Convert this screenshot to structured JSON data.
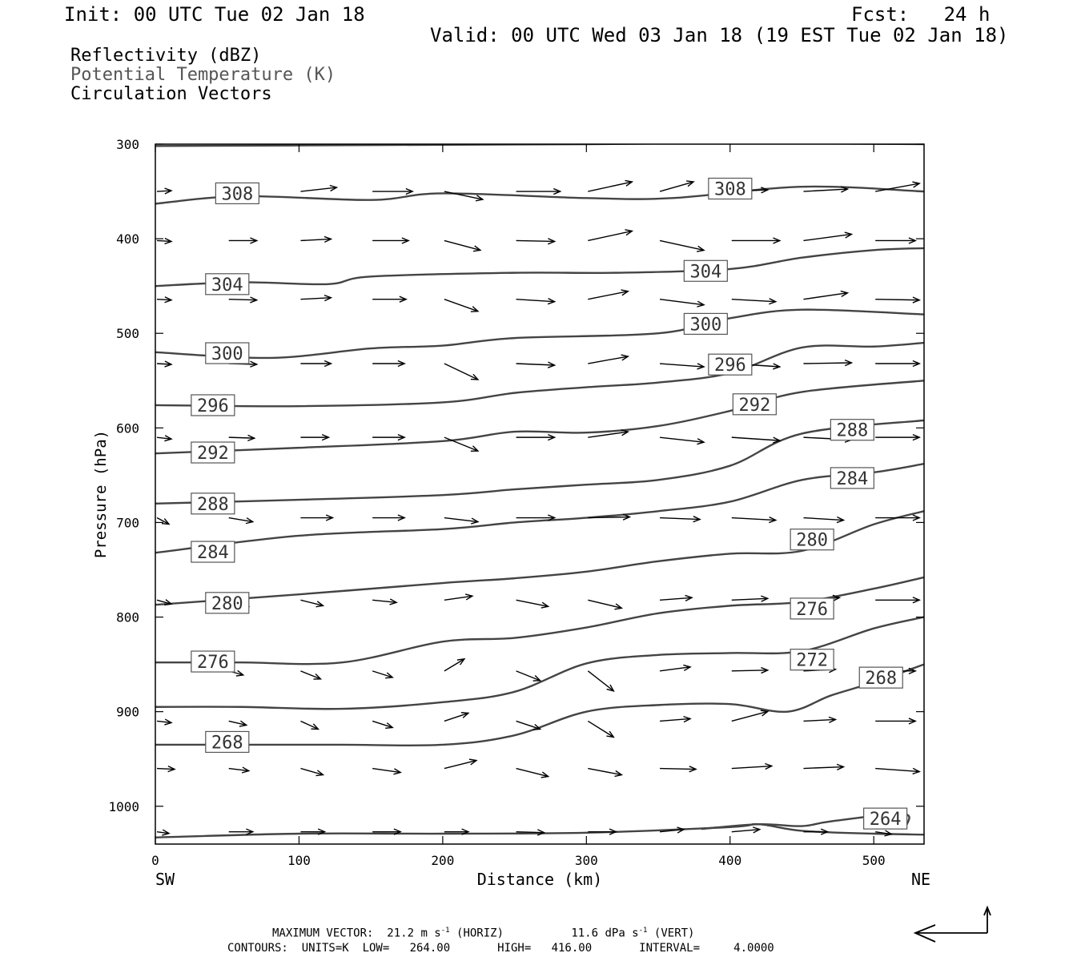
{
  "header": {
    "init": "Init: 00 UTC Tue 02 Jan 18",
    "fcst": "Fcst:   24 h",
    "valid": "Valid: 00 UTC Wed 03 Jan 18 (19 EST Tue 02 Jan 18)"
  },
  "fields": {
    "reflectivity": "Reflectivity (dBZ)",
    "theta": "Potential Temperature (K)",
    "vectors": "Circulation Vectors"
  },
  "chart_data": {
    "type": "line",
    "xlabel": "Distance (km)",
    "ylabel": "Pressure (hPa)",
    "xlim": [
      0,
      535
    ],
    "ylim": [
      1040,
      300
    ],
    "x_ticks": [
      0,
      100,
      200,
      300,
      400,
      500
    ],
    "y_ticks": [
      300,
      400,
      500,
      600,
      700,
      800,
      900,
      1000
    ],
    "x_endpoints": {
      "left": "SW",
      "right": "NE"
    },
    "grid": false,
    "colors": {
      "contour": "#444444",
      "vector": "#000000",
      "label_border": "#555555"
    },
    "contours": [
      {
        "value": 308,
        "x": [
          0,
          60,
          150,
          200,
          300,
          360,
          450,
          535
        ],
        "p": [
          363,
          355,
          359,
          352,
          357,
          357,
          345,
          350
        ],
        "label": [
          42,
          352
        ]
      },
      {
        "value": 304,
        "x": [
          0,
          60,
          120,
          150,
          250,
          320,
          400,
          450,
          500,
          535
        ],
        "p": [
          450,
          446,
          448,
          440,
          436,
          436,
          432,
          420,
          412,
          410
        ],
        "label": [
          35,
          448
        ]
      },
      {
        "value": 300,
        "x": [
          0,
          80,
          150,
          200,
          250,
          350,
          400,
          450,
          535
        ],
        "p": [
          520,
          526,
          516,
          513,
          505,
          500,
          484,
          475,
          480
        ],
        "label": [
          35,
          521
        ]
      },
      {
        "value": 296,
        "x": [
          0,
          100,
          200,
          250,
          300,
          350,
          400,
          450,
          500,
          535
        ],
        "p": [
          576,
          577,
          573,
          563,
          557,
          552,
          542,
          515,
          514,
          510
        ],
        "label": [
          25,
          576
        ]
      },
      {
        "value": 292,
        "x": [
          0,
          100,
          200,
          250,
          300,
          350,
          400,
          450,
          535
        ],
        "p": [
          627,
          621,
          614,
          604,
          605,
          598,
          582,
          562,
          550
        ],
        "label": [
          25,
          626
        ]
      },
      {
        "value": 288,
        "x": [
          0,
          100,
          200,
          250,
          300,
          350,
          400,
          450,
          535
        ],
        "p": [
          680,
          676,
          671,
          665,
          660,
          655,
          640,
          606,
          592
        ],
        "label": [
          25,
          680
        ]
      },
      {
        "value": 284,
        "x": [
          0,
          100,
          200,
          250,
          300,
          350,
          400,
          450,
          500,
          535
        ],
        "p": [
          732,
          714,
          707,
          700,
          695,
          688,
          678,
          655,
          647,
          638
        ],
        "label": [
          25,
          731
        ]
      },
      {
        "value": 280,
        "x": [
          0,
          100,
          200,
          250,
          300,
          350,
          400,
          450,
          500,
          535
        ],
        "p": [
          787,
          776,
          764,
          759,
          752,
          741,
          733,
          730,
          702,
          688
        ],
        "label": [
          35,
          785
        ]
      },
      {
        "value": 276,
        "x": [
          0,
          60,
          130,
          200,
          250,
          300,
          350,
          400,
          450,
          500,
          535
        ],
        "p": [
          848,
          848,
          848,
          826,
          822,
          811,
          796,
          788,
          784,
          770,
          758
        ],
        "label": [
          25,
          847
        ]
      },
      {
        "value": 272,
        "x": [
          0,
          60,
          130,
          200,
          250,
          300,
          350,
          400,
          450,
          500,
          535
        ],
        "p": [
          895,
          895,
          897,
          890,
          879,
          849,
          840,
          838,
          836,
          812,
          800
        ],
        "label": [
          0,
          0
        ]
      },
      {
        "value": 268,
        "x": [
          0,
          60,
          130,
          200,
          250,
          300,
          350,
          400,
          440,
          470,
          500,
          535
        ],
        "p": [
          935,
          935,
          935,
          935,
          925,
          900,
          893,
          892,
          900,
          883,
          869,
          850
        ],
        "label": [
          35,
          932
        ]
      },
      {
        "value": 264,
        "x": [
          0,
          100,
          200,
          300,
          400,
          420,
          450,
          500,
          535
        ],
        "p": [
          1033,
          1029,
          1029,
          1028,
          1022,
          1019,
          1026,
          1029,
          1030
        ],
        "label": [
          0,
          0
        ]
      },
      {
        "value": 264,
        "x": [
          380,
          420,
          450,
          470,
          520,
          523
        ],
        "p": [
          1024,
          1019,
          1021,
          1016,
          1008,
          1020
        ],
        "label": [
          0,
          0
        ]
      }
    ],
    "contour_labels": [
      {
        "text": "308",
        "x": 42,
        "p": 352
      },
      {
        "text": "308",
        "x": 385,
        "p": 347
      },
      {
        "text": "304",
        "x": 35,
        "p": 448
      },
      {
        "text": "304",
        "x": 368,
        "p": 434
      },
      {
        "text": "300",
        "x": 35,
        "p": 521
      },
      {
        "text": "300",
        "x": 368,
        "p": 490
      },
      {
        "text": "296",
        "x": 25,
        "p": 576
      },
      {
        "text": "296",
        "x": 385,
        "p": 533
      },
      {
        "text": "292",
        "x": 25,
        "p": 626
      },
      {
        "text": "292",
        "x": 402,
        "p": 575
      },
      {
        "text": "288",
        "x": 25,
        "p": 680
      },
      {
        "text": "288",
        "x": 470,
        "p": 602
      },
      {
        "text": "284",
        "x": 25,
        "p": 731
      },
      {
        "text": "284",
        "x": 470,
        "p": 653
      },
      {
        "text": "280",
        "x": 35,
        "p": 785
      },
      {
        "text": "280",
        "x": 442,
        "p": 718
      },
      {
        "text": "276",
        "x": 25,
        "p": 847
      },
      {
        "text": "276",
        "x": 442,
        "p": 791
      },
      {
        "text": "272",
        "x": 442,
        "p": 845
      },
      {
        "text": "268",
        "x": 35,
        "p": 932
      },
      {
        "text": "268",
        "x": 490,
        "p": 864
      },
      {
        "text": "264",
        "x": 493,
        "p": 1013
      }
    ],
    "vector_rows_p": [
      350,
      402,
      464,
      532,
      610,
      695,
      782,
      857,
      910,
      960,
      1027
    ],
    "vector_cols_x": [
      0,
      50,
      100,
      150,
      200,
      250,
      300,
      350,
      400,
      450,
      500
    ],
    "vectors": [
      [
        [
          18,
          -1
        ],
        [
          32,
          0
        ],
        [
          45,
          -5
        ],
        [
          50,
          0
        ],
        [
          48,
          10
        ],
        [
          55,
          0
        ],
        [
          55,
          -12
        ],
        [
          42,
          -12
        ],
        [
          45,
          -2
        ],
        [
          55,
          -3
        ],
        [
          55,
          -10
        ]
      ],
      [
        [
          18,
          1
        ],
        [
          35,
          0
        ],
        [
          38,
          -2
        ],
        [
          45,
          0
        ],
        [
          45,
          12
        ],
        [
          48,
          1
        ],
        [
          55,
          -12
        ],
        [
          55,
          12
        ],
        [
          60,
          0
        ],
        [
          60,
          -8
        ],
        [
          50,
          0
        ]
      ],
      [
        [
          18,
          1
        ],
        [
          35,
          1
        ],
        [
          38,
          -2
        ],
        [
          42,
          0
        ],
        [
          42,
          15
        ],
        [
          48,
          3
        ],
        [
          50,
          -10
        ],
        [
          55,
          7
        ],
        [
          55,
          3
        ],
        [
          55,
          -8
        ],
        [
          55,
          1
        ]
      ],
      [
        [
          18,
          1
        ],
        [
          35,
          1
        ],
        [
          38,
          0
        ],
        [
          40,
          0
        ],
        [
          42,
          20
        ],
        [
          48,
          2
        ],
        [
          50,
          -9
        ],
        [
          55,
          4
        ],
        [
          60,
          4
        ],
        [
          60,
          -1
        ],
        [
          55,
          0
        ]
      ],
      [
        [
          18,
          2
        ],
        [
          32,
          1
        ],
        [
          35,
          0
        ],
        [
          40,
          0
        ],
        [
          42,
          17
        ],
        [
          48,
          0
        ],
        [
          50,
          -7
        ],
        [
          55,
          6
        ],
        [
          60,
          4
        ],
        [
          60,
          3
        ],
        [
          55,
          0
        ]
      ],
      [
        [
          15,
          8
        ],
        [
          30,
          5
        ],
        [
          40,
          0
        ],
        [
          40,
          0
        ],
        [
          42,
          5
        ],
        [
          48,
          0
        ],
        [
          52,
          -1
        ],
        [
          50,
          2
        ],
        [
          55,
          3
        ],
        [
          50,
          3
        ],
        [
          55,
          0
        ]
      ],
      [
        [
          18,
          5
        ],
        [
          25,
          8
        ],
        [
          28,
          7
        ],
        [
          30,
          3
        ],
        [
          35,
          -5
        ],
        [
          40,
          8
        ],
        [
          42,
          10
        ],
        [
          40,
          -3
        ],
        [
          45,
          -2
        ],
        [
          45,
          -3
        ],
        [
          55,
          0
        ]
      ],
      [
        [
          0,
          0
        ],
        [
          18,
          5
        ],
        [
          25,
          10
        ],
        [
          25,
          8
        ],
        [
          25,
          -15
        ],
        [
          30,
          12
        ],
        [
          32,
          25
        ],
        [
          38,
          -5
        ],
        [
          45,
          -1
        ],
        [
          40,
          -2
        ],
        [
          50,
          0
        ]
      ],
      [
        [
          18,
          2
        ],
        [
          22,
          5
        ],
        [
          22,
          10
        ],
        [
          25,
          8
        ],
        [
          30,
          -10
        ],
        [
          30,
          10
        ],
        [
          32,
          20
        ],
        [
          38,
          -3
        ],
        [
          45,
          -12
        ],
        [
          40,
          -2
        ],
        [
          50,
          0
        ]
      ],
      [
        [
          22,
          1
        ],
        [
          25,
          3
        ],
        [
          28,
          8
        ],
        [
          35,
          5
        ],
        [
          40,
          -10
        ],
        [
          40,
          10
        ],
        [
          42,
          8
        ],
        [
          45,
          1
        ],
        [
          50,
          -3
        ],
        [
          50,
          -2
        ],
        [
          55,
          4
        ]
      ],
      [
        [
          15,
          2
        ],
        [
          30,
          0
        ],
        [
          30,
          0
        ],
        [
          35,
          0
        ],
        [
          30,
          0
        ],
        [
          35,
          1
        ],
        [
          35,
          0
        ],
        [
          30,
          -3
        ],
        [
          35,
          -3
        ],
        [
          30,
          0
        ],
        [
          20,
          3
        ]
      ]
    ]
  },
  "footer": {
    "max_vector_label": "MAXIMUM VECTOR:",
    "max_horiz": "21.2 m s",
    "horiz_tag": "(HORIZ)",
    "max_vert": "11.6 dPa s",
    "vert_tag": "(VERT)",
    "exp": "-1",
    "contours": "CONTOURS:  UNITS=K  LOW=   264.00       HIGH=   416.00       INTERVAL=     4.0000"
  }
}
